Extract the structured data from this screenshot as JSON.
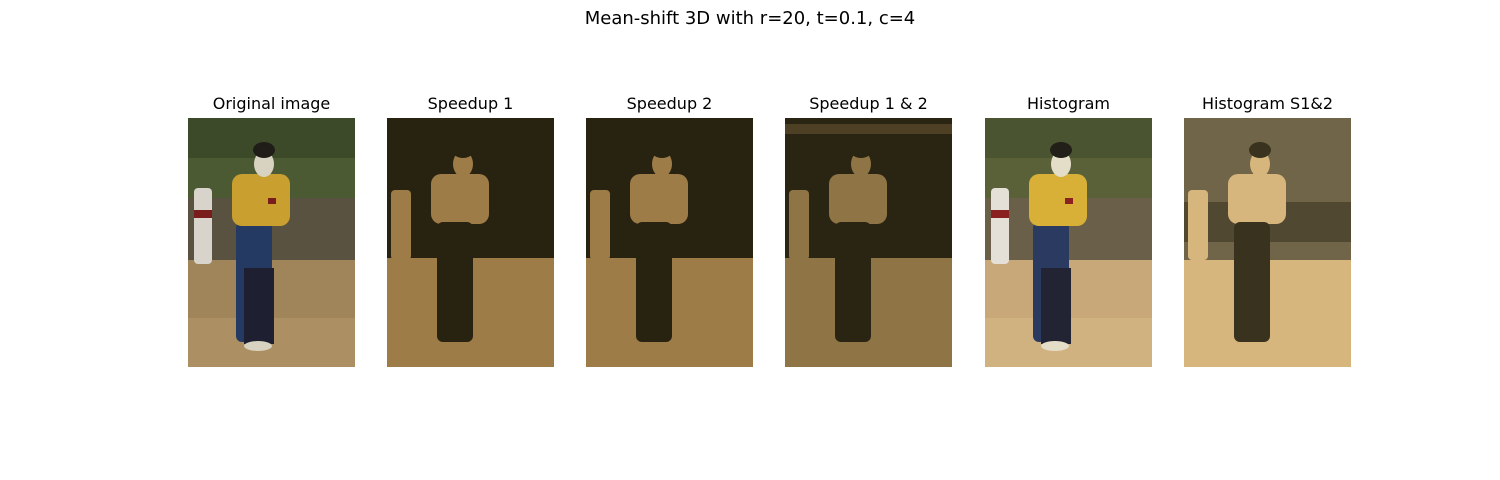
{
  "figure": {
    "title": "Mean-shift 3D with r=20, t=0.1, c=4"
  },
  "panels": [
    {
      "title": "Original image",
      "palette": {
        "bg_top": "#3c4a2a",
        "bg_mid": "#4b5a33",
        "wall": "#5a5240",
        "ground": "#a0845a",
        "ground_light": "#b89a6a",
        "robe_yellow": "#c9a030",
        "robe_blue": "#253a63",
        "robe_dark": "#1e2032",
        "mask": "#d8d2c0",
        "hat": "#201c18",
        "side_figure": "#d8d4cc",
        "accent": "#7a1c1c"
      }
    },
    {
      "title": "Speedup 1",
      "palette": {
        "dark": "#282211",
        "light": "#9e7c48"
      }
    },
    {
      "title": "Speedup 2",
      "palette": {
        "dark": "#282211",
        "light": "#9e7c48"
      }
    },
    {
      "title": "Speedup 1 & 2",
      "palette": {
        "dark": "#2a2513",
        "light": "#8f7446"
      }
    },
    {
      "title": "Histogram",
      "palette": {
        "bg_top": "#4a5430",
        "bg_mid": "#5a6038",
        "wall": "#6a5f48",
        "ground": "#c8a878",
        "ground_light": "#d8bc8a",
        "robe_yellow": "#d8b038",
        "robe_blue": "#2a3a60",
        "robe_dark": "#222434",
        "mask": "#e4ddc8",
        "hat": "#221e18",
        "side_figure": "#e4e0d8",
        "accent": "#8a2020"
      }
    },
    {
      "title": "Histogram S1&2",
      "palette": {
        "dark": "#38321f",
        "mid": "#706549",
        "light": "#d6b67c"
      }
    }
  ]
}
